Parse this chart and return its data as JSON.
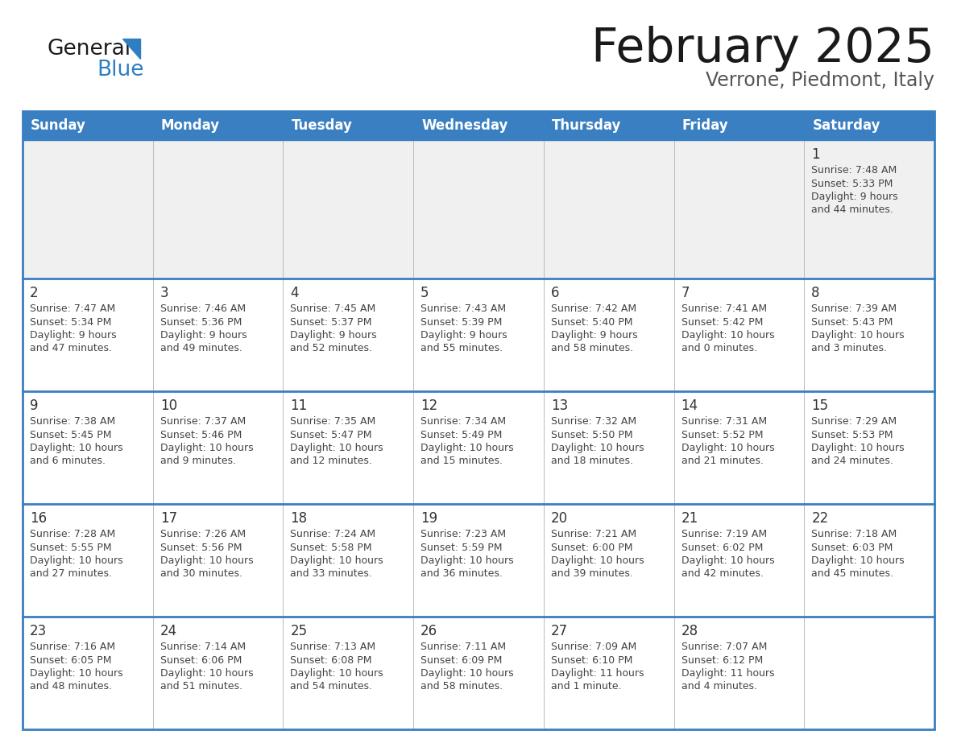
{
  "title": "February 2025",
  "subtitle": "Verrone, Piedmont, Italy",
  "days_of_week": [
    "Sunday",
    "Monday",
    "Tuesday",
    "Wednesday",
    "Thursday",
    "Friday",
    "Saturday"
  ],
  "header_bg": "#3a7fc1",
  "header_text": "#ffffff",
  "row_separator_color": "#3a7fc1",
  "cell_bg_light": "#f0f0f0",
  "cell_bg_white": "#ffffff",
  "day_num_color": "#333333",
  "info_text_color": "#444444",
  "title_color": "#1a1a1a",
  "subtitle_color": "#555555",
  "logo_general_color": "#1a1a1a",
  "logo_blue_color": "#2e7ec1",
  "weeks": [
    [
      {
        "day": null
      },
      {
        "day": null
      },
      {
        "day": null
      },
      {
        "day": null
      },
      {
        "day": null
      },
      {
        "day": null
      },
      {
        "day": 1,
        "sunrise": "7:48 AM",
        "sunset": "5:33 PM",
        "daylight_line1": "9 hours",
        "daylight_line2": "and 44 minutes."
      }
    ],
    [
      {
        "day": 2,
        "sunrise": "7:47 AM",
        "sunset": "5:34 PM",
        "daylight_line1": "9 hours",
        "daylight_line2": "and 47 minutes."
      },
      {
        "day": 3,
        "sunrise": "7:46 AM",
        "sunset": "5:36 PM",
        "daylight_line1": "9 hours",
        "daylight_line2": "and 49 minutes."
      },
      {
        "day": 4,
        "sunrise": "7:45 AM",
        "sunset": "5:37 PM",
        "daylight_line1": "9 hours",
        "daylight_line2": "and 52 minutes."
      },
      {
        "day": 5,
        "sunrise": "7:43 AM",
        "sunset": "5:39 PM",
        "daylight_line1": "9 hours",
        "daylight_line2": "and 55 minutes."
      },
      {
        "day": 6,
        "sunrise": "7:42 AM",
        "sunset": "5:40 PM",
        "daylight_line1": "9 hours",
        "daylight_line2": "and 58 minutes."
      },
      {
        "day": 7,
        "sunrise": "7:41 AM",
        "sunset": "5:42 PM",
        "daylight_line1": "10 hours",
        "daylight_line2": "and 0 minutes."
      },
      {
        "day": 8,
        "sunrise": "7:39 AM",
        "sunset": "5:43 PM",
        "daylight_line1": "10 hours",
        "daylight_line2": "and 3 minutes."
      }
    ],
    [
      {
        "day": 9,
        "sunrise": "7:38 AM",
        "sunset": "5:45 PM",
        "daylight_line1": "10 hours",
        "daylight_line2": "and 6 minutes."
      },
      {
        "day": 10,
        "sunrise": "7:37 AM",
        "sunset": "5:46 PM",
        "daylight_line1": "10 hours",
        "daylight_line2": "and 9 minutes."
      },
      {
        "day": 11,
        "sunrise": "7:35 AM",
        "sunset": "5:47 PM",
        "daylight_line1": "10 hours",
        "daylight_line2": "and 12 minutes."
      },
      {
        "day": 12,
        "sunrise": "7:34 AM",
        "sunset": "5:49 PM",
        "daylight_line1": "10 hours",
        "daylight_line2": "and 15 minutes."
      },
      {
        "day": 13,
        "sunrise": "7:32 AM",
        "sunset": "5:50 PM",
        "daylight_line1": "10 hours",
        "daylight_line2": "and 18 minutes."
      },
      {
        "day": 14,
        "sunrise": "7:31 AM",
        "sunset": "5:52 PM",
        "daylight_line1": "10 hours",
        "daylight_line2": "and 21 minutes."
      },
      {
        "day": 15,
        "sunrise": "7:29 AM",
        "sunset": "5:53 PM",
        "daylight_line1": "10 hours",
        "daylight_line2": "and 24 minutes."
      }
    ],
    [
      {
        "day": 16,
        "sunrise": "7:28 AM",
        "sunset": "5:55 PM",
        "daylight_line1": "10 hours",
        "daylight_line2": "and 27 minutes."
      },
      {
        "day": 17,
        "sunrise": "7:26 AM",
        "sunset": "5:56 PM",
        "daylight_line1": "10 hours",
        "daylight_line2": "and 30 minutes."
      },
      {
        "day": 18,
        "sunrise": "7:24 AM",
        "sunset": "5:58 PM",
        "daylight_line1": "10 hours",
        "daylight_line2": "and 33 minutes."
      },
      {
        "day": 19,
        "sunrise": "7:23 AM",
        "sunset": "5:59 PM",
        "daylight_line1": "10 hours",
        "daylight_line2": "and 36 minutes."
      },
      {
        "day": 20,
        "sunrise": "7:21 AM",
        "sunset": "6:00 PM",
        "daylight_line1": "10 hours",
        "daylight_line2": "and 39 minutes."
      },
      {
        "day": 21,
        "sunrise": "7:19 AM",
        "sunset": "6:02 PM",
        "daylight_line1": "10 hours",
        "daylight_line2": "and 42 minutes."
      },
      {
        "day": 22,
        "sunrise": "7:18 AM",
        "sunset": "6:03 PM",
        "daylight_line1": "10 hours",
        "daylight_line2": "and 45 minutes."
      }
    ],
    [
      {
        "day": 23,
        "sunrise": "7:16 AM",
        "sunset": "6:05 PM",
        "daylight_line1": "10 hours",
        "daylight_line2": "and 48 minutes."
      },
      {
        "day": 24,
        "sunrise": "7:14 AM",
        "sunset": "6:06 PM",
        "daylight_line1": "10 hours",
        "daylight_line2": "and 51 minutes."
      },
      {
        "day": 25,
        "sunrise": "7:13 AM",
        "sunset": "6:08 PM",
        "daylight_line1": "10 hours",
        "daylight_line2": "and 54 minutes."
      },
      {
        "day": 26,
        "sunrise": "7:11 AM",
        "sunset": "6:09 PM",
        "daylight_line1": "10 hours",
        "daylight_line2": "and 58 minutes."
      },
      {
        "day": 27,
        "sunrise": "7:09 AM",
        "sunset": "6:10 PM",
        "daylight_line1": "11 hours",
        "daylight_line2": "and 1 minute."
      },
      {
        "day": 28,
        "sunrise": "7:07 AM",
        "sunset": "6:12 PM",
        "daylight_line1": "11 hours",
        "daylight_line2": "and 4 minutes."
      },
      {
        "day": null
      }
    ]
  ],
  "figsize": [
    11.88,
    9.18
  ],
  "dpi": 100
}
